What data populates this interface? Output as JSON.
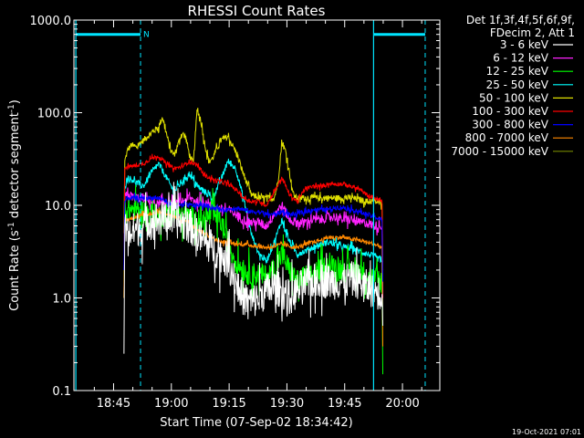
{
  "chart_data": {
    "type": "line",
    "title": "RHESSI Count Rates",
    "xlabel": "Start Time (07-Sep-02 18:34:42)",
    "ylabel_parts": [
      "Count Rate (s",
      "-1",
      " detector segment",
      "-1",
      ")"
    ],
    "x_unit": "minutes since 18:34:42",
    "xlim": [
      0,
      95
    ],
    "ylim": [
      0.1,
      1000
    ],
    "y_scale": "log",
    "grid": false,
    "legend_position": "top-right outside",
    "legend_header": [
      "Det 1f,3f,4f,5f,6f,9f,",
      "FDecim 2, Att 1"
    ],
    "x_ticks": [
      {
        "t": 10.3,
        "label": "18:45"
      },
      {
        "t": 25.3,
        "label": "19:00"
      },
      {
        "t": 40.3,
        "label": "19:15"
      },
      {
        "t": 55.3,
        "label": "19:30"
      },
      {
        "t": 70.3,
        "label": "19:45"
      },
      {
        "t": 85.3,
        "label": "20:00"
      }
    ],
    "y_ticks": [
      {
        "v": 0.1,
        "label": "0.1"
      },
      {
        "v": 1,
        "label": "1.0"
      },
      {
        "v": 10,
        "label": "10.0"
      },
      {
        "v": 100,
        "label": "100.0"
      },
      {
        "v": 1000,
        "label": "1000.0"
      }
    ],
    "markers": {
      "solid_vertical": [
        0.5,
        77.8
      ],
      "dashed_vertical": [
        17.3,
        91.2
      ],
      "top_bars": [
        {
          "x0": 0.5,
          "x1": 17.3,
          "y": 700,
          "label": "N"
        },
        {
          "x0": 77.8,
          "x1": 91.2,
          "y": 700,
          "label": ""
        }
      ],
      "color": "#00e5ff"
    },
    "date_stamp": "19-Oct-2021 07:01",
    "series": [
      {
        "name": "3 - 6 keV",
        "color": "#ffffff",
        "noise": 0.45,
        "t": [
          13,
          13.2,
          14,
          16,
          18,
          20,
          22,
          24,
          26,
          28,
          30,
          32,
          34,
          36,
          38,
          40,
          42,
          44,
          46,
          48,
          50,
          52,
          54,
          56,
          58,
          60,
          62,
          64,
          66,
          68,
          70,
          72,
          74,
          76,
          78,
          80,
          80.2
        ],
        "v": [
          0.25,
          6,
          5,
          5.5,
          6,
          7,
          7,
          7.5,
          7,
          6.5,
          6,
          5,
          4,
          3.5,
          3,
          2.5,
          1.5,
          1,
          0.9,
          1,
          1.2,
          1.3,
          1.2,
          1,
          1.2,
          1.4,
          1.5,
          1.6,
          1.5,
          1.5,
          1.5,
          1.6,
          1.5,
          1.3,
          1.2,
          1.1,
          0.5
        ]
      },
      {
        "name": "6 - 12 keV",
        "color": "#ff22ff",
        "noise": 0.12,
        "t": [
          13,
          13.2,
          14,
          16,
          18,
          20,
          22,
          24,
          26,
          28,
          30,
          32,
          34,
          36,
          38,
          40,
          42,
          44,
          46,
          48,
          50,
          52,
          54,
          56,
          58,
          60,
          62,
          64,
          66,
          68,
          70,
          72,
          74,
          76,
          78,
          80,
          80.2
        ],
        "v": [
          1,
          12,
          13,
          12,
          12,
          11,
          10,
          11,
          10,
          11,
          12,
          11,
          11,
          10,
          9,
          9,
          8,
          7,
          6.5,
          6.5,
          6,
          8,
          10,
          7,
          6.5,
          6.5,
          7,
          7,
          7.5,
          7.5,
          7,
          7,
          6.5,
          6.5,
          6,
          6,
          1
        ]
      },
      {
        "name": "12 - 25 keV",
        "color": "#00ff00",
        "noise": 0.3,
        "t": [
          13,
          13.2,
          14,
          16,
          18,
          20,
          22,
          24,
          26,
          28,
          30,
          32,
          34,
          36,
          38,
          40,
          42,
          44,
          46,
          48,
          50,
          52,
          54,
          56,
          58,
          60,
          62,
          64,
          66,
          68,
          70,
          72,
          74,
          76,
          78,
          80,
          80.2
        ],
        "v": [
          1,
          9,
          9,
          9,
          8.5,
          8,
          7.5,
          8,
          8,
          7.5,
          7.5,
          7,
          7,
          8,
          7,
          4,
          2.5,
          2,
          1.8,
          1.8,
          1.7,
          2,
          3,
          2,
          1.5,
          1.7,
          1.8,
          2,
          2.2,
          2.2,
          2,
          2,
          2,
          1.8,
          1.6,
          1.5,
          0.15
        ]
      },
      {
        "name": "25 - 50 keV",
        "color": "#00ffff",
        "noise": 0.08,
        "t": [
          13,
          13.2,
          14,
          16,
          18,
          20,
          22,
          24,
          26,
          28,
          30,
          32,
          34,
          36,
          38,
          40,
          42,
          44,
          46,
          48,
          50,
          52,
          54,
          56,
          58,
          60,
          62,
          64,
          66,
          68,
          70,
          72,
          74,
          76,
          78,
          80,
          80.2
        ],
        "v": [
          2,
          16,
          20,
          18,
          16,
          22,
          28,
          20,
          14,
          18,
          22,
          16,
          14,
          12,
          18,
          30,
          25,
          12,
          5,
          3,
          2.5,
          4,
          7,
          4,
          3,
          3.2,
          3.5,
          3.8,
          4,
          3.8,
          3.5,
          3.5,
          3.2,
          3,
          2.8,
          2.5,
          0.5
        ]
      },
      {
        "name": "50 - 100 keV",
        "color": "#e0e000",
        "noise": 0.08,
        "t": [
          13,
          13.2,
          14,
          15,
          16,
          18,
          20,
          22,
          23,
          24,
          25,
          26,
          27,
          28,
          29,
          30,
          31,
          32,
          33,
          34,
          35,
          36,
          38,
          40,
          42,
          44,
          46,
          48,
          50,
          52,
          53,
          54,
          55,
          56,
          57,
          58,
          60,
          62,
          64,
          66,
          68,
          70,
          72,
          74,
          76,
          78,
          80,
          80.2
        ],
        "v": [
          5,
          30,
          40,
          45,
          42,
          50,
          60,
          70,
          90,
          60,
          40,
          35,
          45,
          60,
          55,
          35,
          28,
          110,
          80,
          45,
          30,
          32,
          50,
          55,
          38,
          22,
          13,
          12,
          12,
          12,
          18,
          48,
          38,
          22,
          13,
          12,
          12,
          12,
          12,
          12,
          12,
          12,
          12,
          11.5,
          11,
          11,
          10.5,
          2
        ]
      },
      {
        "name": "100 - 300 keV",
        "color": "#ff0000",
        "noise": 0.05,
        "t": [
          13,
          13.2,
          14,
          16,
          18,
          20,
          22,
          24,
          26,
          28,
          30,
          32,
          34,
          36,
          38,
          40,
          42,
          44,
          46,
          48,
          50,
          52,
          54,
          56,
          58,
          60,
          62,
          64,
          66,
          68,
          70,
          72,
          74,
          76,
          78,
          80,
          80.2
        ],
        "v": [
          2,
          25,
          26,
          27,
          28,
          32,
          34,
          28,
          25,
          26,
          30,
          27,
          21,
          19,
          18,
          17,
          15,
          12,
          11,
          11,
          10,
          14,
          20,
          13,
          11,
          15,
          16,
          16,
          17,
          17,
          17,
          16,
          15,
          13,
          12,
          11,
          2
        ]
      },
      {
        "name": "300 - 800 keV",
        "color": "#0000ff",
        "noise": 0.06,
        "t": [
          13,
          13.2,
          14,
          16,
          18,
          20,
          22,
          24,
          26,
          28,
          30,
          32,
          34,
          36,
          38,
          40,
          42,
          44,
          46,
          48,
          50,
          52,
          54,
          56,
          58,
          60,
          62,
          64,
          66,
          68,
          70,
          72,
          74,
          76,
          78,
          80,
          80.2
        ],
        "v": [
          2,
          11,
          12,
          12,
          12,
          12,
          12,
          11,
          10,
          10,
          10,
          10,
          10,
          9.5,
          9,
          9,
          9.5,
          9,
          8.5,
          8.5,
          8,
          8,
          8.5,
          8,
          8,
          8.5,
          9,
          9,
          9,
          9.5,
          9.5,
          9,
          8.5,
          8,
          7.5,
          7,
          1.5
        ]
      },
      {
        "name": "800 - 7000 keV",
        "color": "#ff8800",
        "noise": 0.05,
        "t": [
          13,
          13.2,
          14,
          16,
          18,
          20,
          22,
          24,
          26,
          28,
          30,
          32,
          34,
          36,
          38,
          40,
          42,
          44,
          46,
          48,
          50,
          52,
          54,
          56,
          58,
          60,
          62,
          64,
          66,
          68,
          70,
          72,
          74,
          76,
          78,
          80,
          80.2
        ],
        "v": [
          1,
          7,
          7,
          7.5,
          8,
          8,
          8.5,
          8,
          7.5,
          7,
          6.5,
          5.5,
          5,
          4.5,
          4,
          4,
          3.8,
          3.8,
          3.7,
          3.6,
          3.5,
          3.6,
          3.8,
          3.6,
          3.5,
          3.8,
          4,
          4.2,
          4.5,
          4.5,
          4.5,
          4.3,
          4.2,
          4,
          3.8,
          3.5,
          0.3
        ]
      },
      {
        "name": "7000 - 15000 keV",
        "color": "#778800",
        "noise": 0.05,
        "t": [],
        "v": []
      }
    ]
  }
}
